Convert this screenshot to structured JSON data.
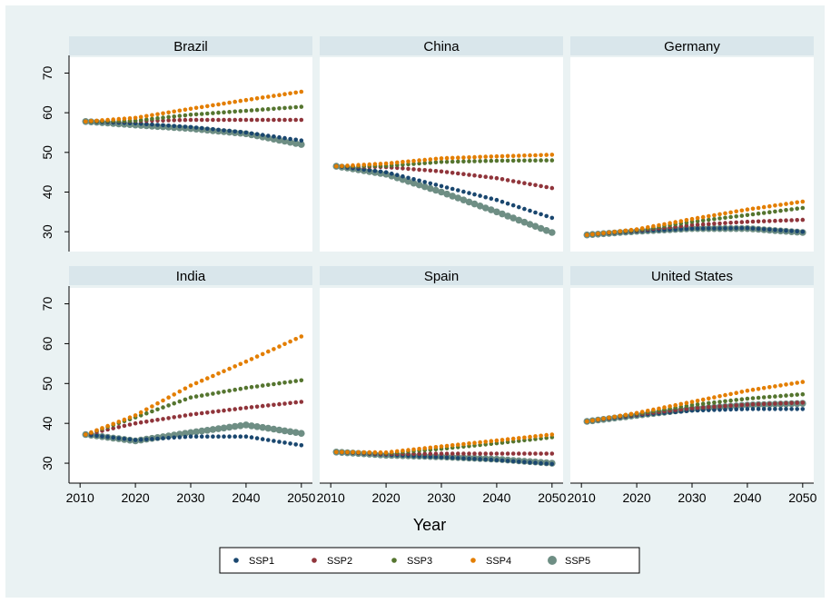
{
  "chart_data": {
    "type": "scatter",
    "layout": "facet-grid-2x3",
    "xlabel": "Year",
    "ylabel": "",
    "xlim": [
      2008,
      2052
    ],
    "ylim": [
      25,
      74
    ],
    "xticks": [
      2010,
      2020,
      2030,
      2040,
      2050
    ],
    "yticks": [
      30,
      40,
      50,
      60,
      70
    ],
    "grid": false,
    "legend_position": "bottom-center",
    "series_styles": [
      {
        "name": "SSP1",
        "color": "#1a476f"
      },
      {
        "name": "SSP2",
        "color": "#90353b"
      },
      {
        "name": "SSP3",
        "color": "#55752f"
      },
      {
        "name": "SSP4",
        "color": "#e37e00"
      },
      {
        "name": "SSP5",
        "color": "#6e8e84"
      }
    ],
    "panels": [
      {
        "title": "Brazil",
        "start": 57.8,
        "knots": [
          {
            "name": "SSP1",
            "y2020": 57.3,
            "y2030": 56.4,
            "y2040": 55.0,
            "y2050": 53.0
          },
          {
            "name": "SSP2",
            "y2020": 57.9,
            "y2030": 58.2,
            "y2040": 58.2,
            "y2050": 58.2
          },
          {
            "name": "SSP3",
            "y2020": 58.0,
            "y2030": 59.5,
            "y2040": 60.5,
            "y2050": 61.5
          },
          {
            "name": "SSP4",
            "y2020": 58.7,
            "y2030": 61.0,
            "y2040": 63.2,
            "y2050": 65.3
          },
          {
            "name": "SSP5",
            "y2020": 56.9,
            "y2030": 56.0,
            "y2040": 54.7,
            "y2050": 52.0
          }
        ]
      },
      {
        "title": "China",
        "start": 46.5,
        "knots": [
          {
            "name": "SSP1",
            "y2020": 45.0,
            "y2030": 41.5,
            "y2040": 38.0,
            "y2050": 33.5
          },
          {
            "name": "SSP2",
            "y2020": 46.3,
            "y2030": 45.2,
            "y2040": 43.5,
            "y2050": 41.0
          },
          {
            "name": "SSP3",
            "y2020": 46.6,
            "y2030": 47.6,
            "y2040": 47.9,
            "y2050": 48.0
          },
          {
            "name": "SSP4",
            "y2020": 47.2,
            "y2030": 48.5,
            "y2040": 49.0,
            "y2050": 49.4
          },
          {
            "name": "SSP5",
            "y2020": 44.5,
            "y2030": 40.0,
            "y2040": 35.0,
            "y2050": 29.8
          }
        ]
      },
      {
        "title": "Germany",
        "start": 29.2,
        "knots": [
          {
            "name": "SSP1",
            "y2020": 30.1,
            "y2030": 30.8,
            "y2040": 30.9,
            "y2050": 30.0
          },
          {
            "name": "SSP2",
            "y2020": 30.3,
            "y2030": 31.7,
            "y2040": 32.5,
            "y2050": 33.0
          },
          {
            "name": "SSP3",
            "y2020": 30.4,
            "y2030": 32.5,
            "y2040": 34.2,
            "y2050": 36.0
          },
          {
            "name": "SSP4",
            "y2020": 30.6,
            "y2030": 33.2,
            "y2040": 35.6,
            "y2050": 37.6
          },
          {
            "name": "SSP5",
            "y2020": 30.1,
            "y2030": 30.8,
            "y2040": 30.8,
            "y2050": 29.8
          }
        ]
      },
      {
        "title": "India",
        "start": 37.2,
        "knots": [
          {
            "name": "SSP1",
            "y2020": 35.8,
            "y2030": 36.7,
            "y2040": 36.7,
            "y2050": 34.5
          },
          {
            "name": "SSP2",
            "y2020": 40.0,
            "y2030": 42.2,
            "y2040": 43.9,
            "y2050": 45.4
          },
          {
            "name": "SSP3",
            "y2020": 41.5,
            "y2030": 46.5,
            "y2040": 48.9,
            "y2050": 50.8
          },
          {
            "name": "SSP4",
            "y2020": 42.0,
            "y2030": 49.5,
            "y2040": 55.5,
            "y2050": 61.8
          },
          {
            "name": "SSP5",
            "y2020": 35.6,
            "y2030": 37.7,
            "y2040": 39.6,
            "y2050": 37.5
          }
        ]
      },
      {
        "title": "Spain",
        "start": 32.8,
        "knots": [
          {
            "name": "SSP1",
            "y2020": 32.1,
            "y2030": 31.5,
            "y2040": 30.8,
            "y2050": 29.8
          },
          {
            "name": "SSP2",
            "y2020": 32.3,
            "y2030": 32.4,
            "y2040": 32.4,
            "y2050": 32.4
          },
          {
            "name": "SSP3",
            "y2020": 32.5,
            "y2030": 33.6,
            "y2040": 35.0,
            "y2050": 36.5
          },
          {
            "name": "SSP4",
            "y2020": 32.7,
            "y2030": 34.2,
            "y2040": 35.7,
            "y2050": 37.2
          },
          {
            "name": "SSP5",
            "y2020": 32.0,
            "y2030": 31.6,
            "y2040": 31.0,
            "y2050": 30.0
          }
        ]
      },
      {
        "title": "United States",
        "start": 40.5,
        "knots": [
          {
            "name": "SSP1",
            "y2020": 42.0,
            "y2030": 43.2,
            "y2040": 43.6,
            "y2050": 43.6
          },
          {
            "name": "SSP2",
            "y2020": 42.2,
            "y2030": 43.8,
            "y2040": 44.7,
            "y2050": 45.2
          },
          {
            "name": "SSP3",
            "y2020": 42.4,
            "y2030": 44.6,
            "y2040": 46.2,
            "y2050": 47.3
          },
          {
            "name": "SSP4",
            "y2020": 42.6,
            "y2030": 45.4,
            "y2040": 48.2,
            "y2050": 50.4
          },
          {
            "name": "SSP5",
            "y2020": 42.0,
            "y2030": 43.6,
            "y2040": 44.6,
            "y2050": 45.0
          }
        ]
      }
    ]
  }
}
